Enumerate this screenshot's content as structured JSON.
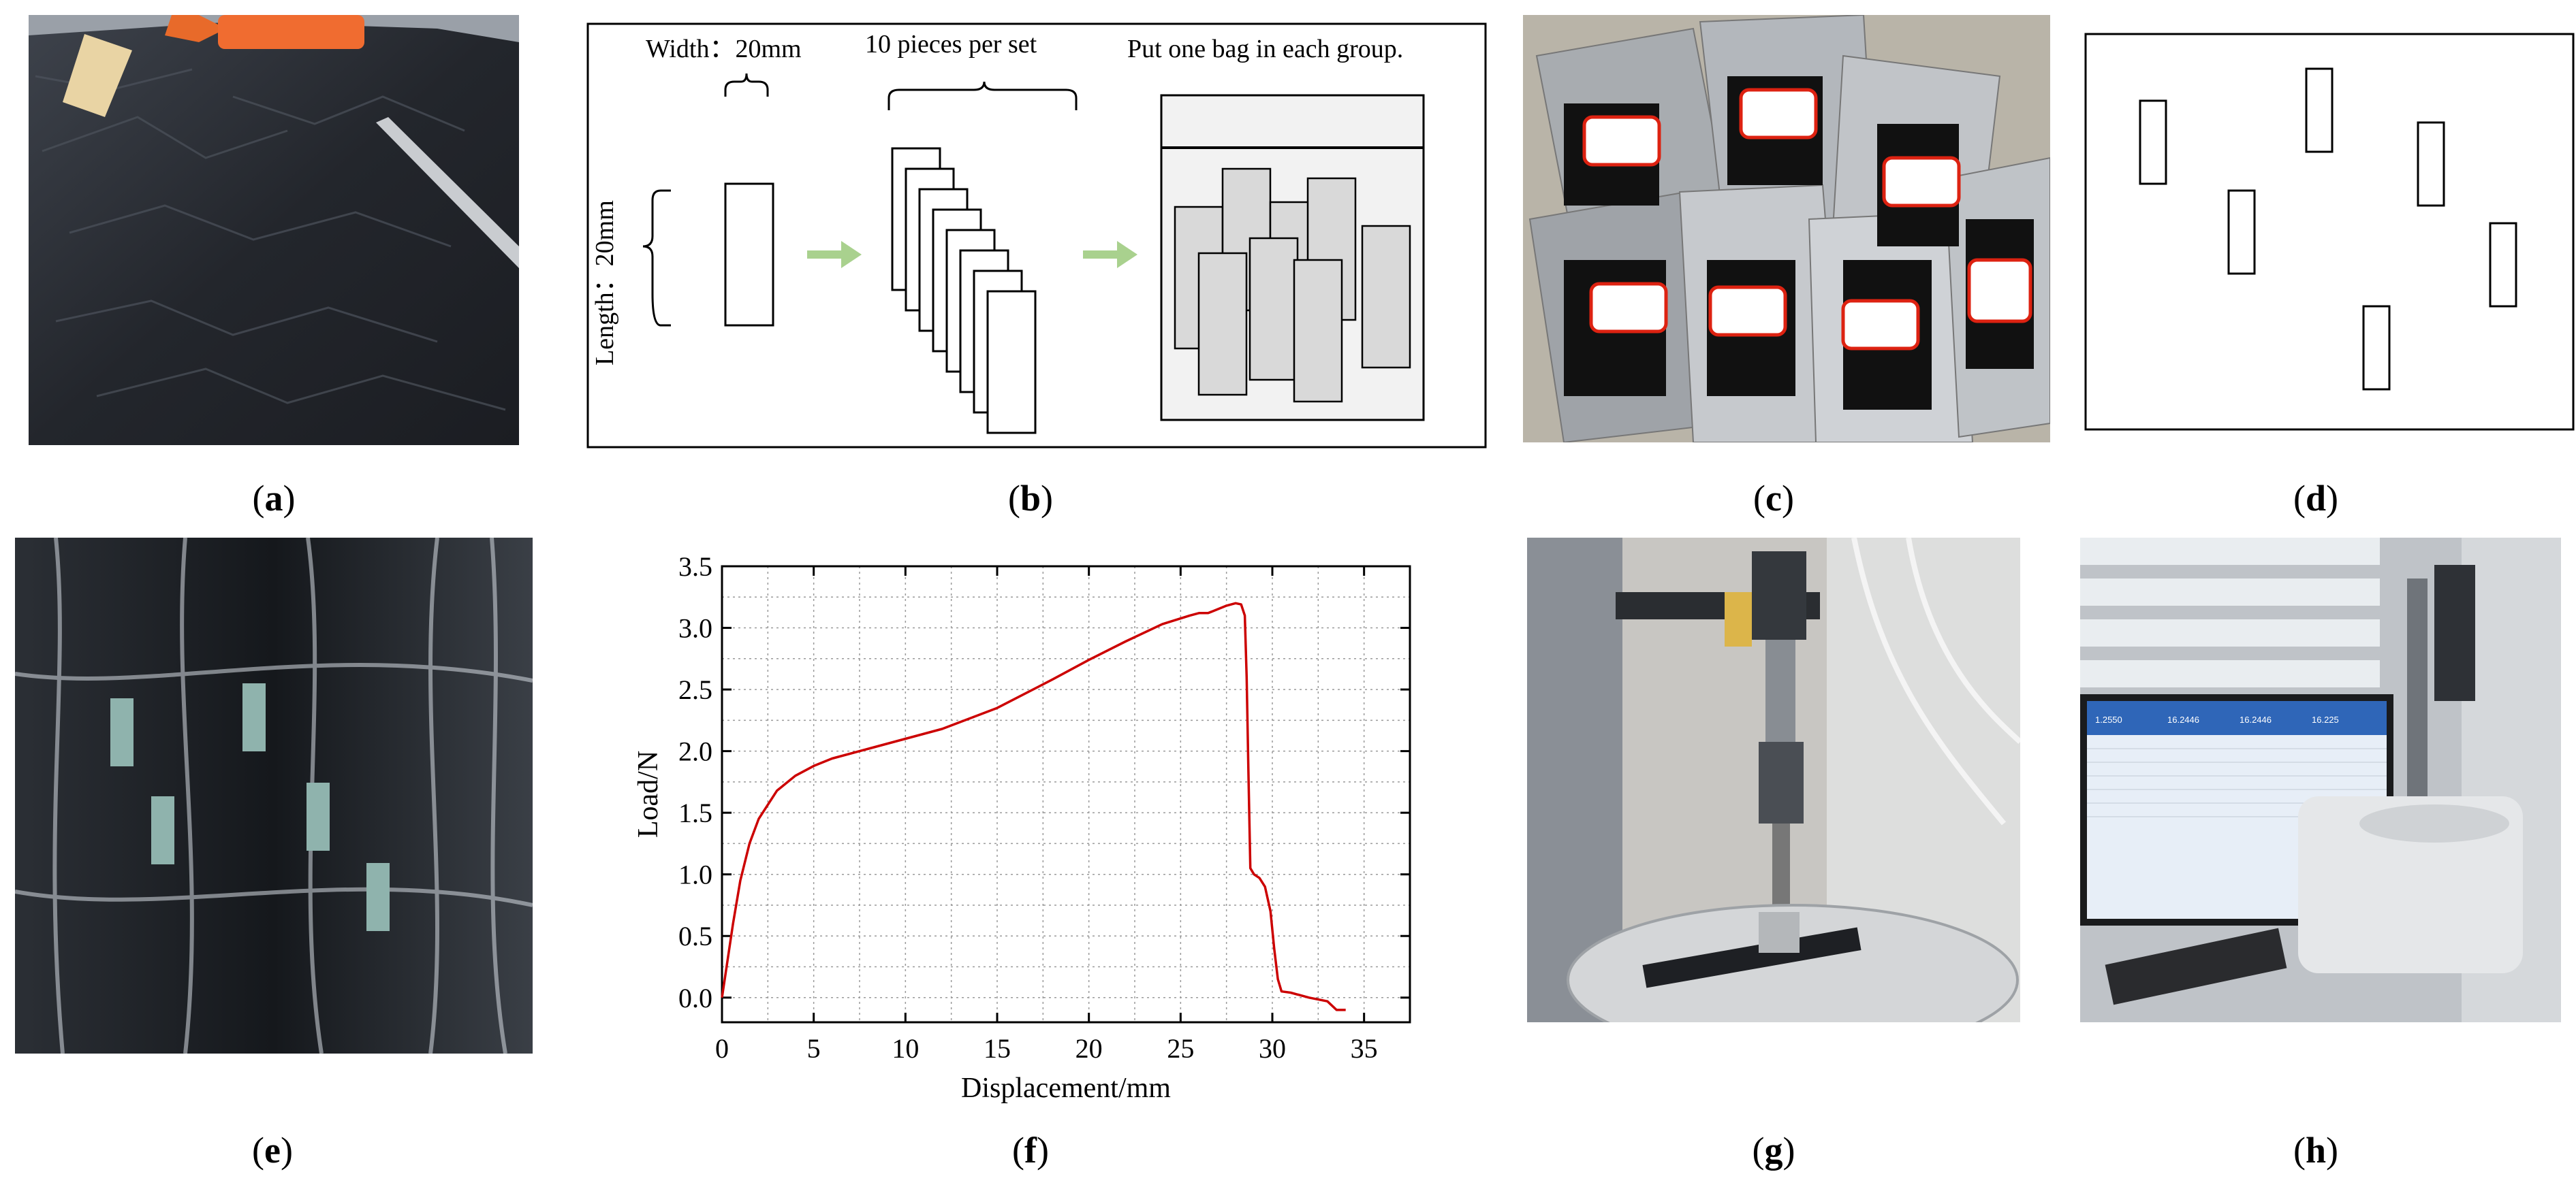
{
  "panels": {
    "a": {
      "label": "a"
    },
    "b": {
      "label": "b",
      "width_label": "Width：20mm",
      "length_label": "Length：20mm",
      "set_label": "10 pieces per set",
      "bag_label": "Put one bag in each group."
    },
    "c": {
      "label": "c"
    },
    "d": {
      "label": "d"
    },
    "e": {
      "label": "e"
    },
    "f": {
      "label": "f"
    },
    "g": {
      "label": "g"
    },
    "h": {
      "label": "h",
      "screen_values": [
        "1.2550",
        "16.2446",
        "16.2446",
        "16.225"
      ]
    }
  },
  "colors": {
    "curve": "#cc0000",
    "arrow": "#a9d18e",
    "specimen_fill": "#d9d9d9",
    "bag_fill": "#f2f2f2"
  },
  "chart_data": {
    "type": "line",
    "title": "",
    "xlabel": "Displacement/mm",
    "ylabel": "Load/N",
    "xlim": [
      0,
      37.5
    ],
    "ylim": [
      -0.2,
      3.5
    ],
    "xticks": [
      0,
      5,
      10,
      15,
      20,
      25,
      30,
      35
    ],
    "yticks": [
      0.0,
      0.5,
      1.0,
      1.5,
      2.0,
      2.5,
      3.0,
      3.5
    ],
    "xtick_labels": [
      "0",
      "5",
      "10",
      "15",
      "20",
      "25",
      "30",
      "35"
    ],
    "ytick_labels": [
      "0.0",
      "0.5",
      "1.0",
      "1.5",
      "2.0",
      "2.5",
      "3.0",
      "3.5"
    ],
    "grid": true,
    "series": [
      {
        "x": [
          0,
          0.3,
          0.6,
          1.0,
          1.5,
          2.0,
          3.0,
          4.0,
          5.0,
          6.0,
          8.0,
          10.0,
          12.0,
          15.0,
          18.0,
          20.0,
          22.0,
          24.0,
          25.5,
          26.0,
          26.5,
          27.0,
          27.5,
          28.0,
          28.3,
          28.5,
          28.6,
          28.7,
          28.8,
          29.0,
          29.3,
          29.6,
          29.9,
          30.1,
          30.3,
          30.5,
          31.0,
          32.0,
          33.0,
          33.5,
          34.0
        ],
        "y": [
          0.0,
          0.3,
          0.6,
          0.95,
          1.25,
          1.45,
          1.68,
          1.8,
          1.88,
          1.94,
          2.02,
          2.1,
          2.18,
          2.35,
          2.58,
          2.74,
          2.89,
          3.03,
          3.1,
          3.12,
          3.12,
          3.15,
          3.18,
          3.2,
          3.19,
          3.1,
          2.6,
          1.8,
          1.05,
          1.0,
          0.97,
          0.9,
          0.7,
          0.4,
          0.15,
          0.05,
          0.04,
          0.0,
          -0.03,
          -0.1,
          -0.1
        ]
      }
    ]
  }
}
